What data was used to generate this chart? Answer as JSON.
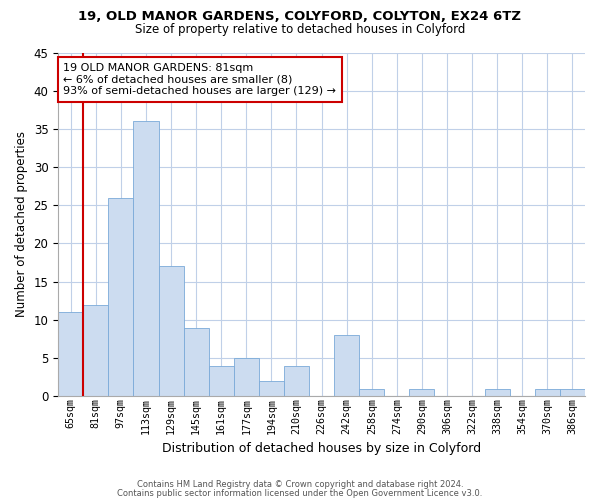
{
  "title": "19, OLD MANOR GARDENS, COLYFORD, COLYTON, EX24 6TZ",
  "subtitle": "Size of property relative to detached houses in Colyford",
  "xlabel": "Distribution of detached houses by size in Colyford",
  "ylabel": "Number of detached properties",
  "bin_labels": [
    "65sqm",
    "81sqm",
    "97sqm",
    "113sqm",
    "129sqm",
    "145sqm",
    "161sqm",
    "177sqm",
    "194sqm",
    "210sqm",
    "226sqm",
    "242sqm",
    "258sqm",
    "274sqm",
    "290sqm",
    "306sqm",
    "322sqm",
    "338sqm",
    "354sqm",
    "370sqm",
    "386sqm"
  ],
  "bar_heights": [
    11,
    12,
    26,
    36,
    17,
    9,
    4,
    5,
    2,
    4,
    0,
    8,
    1,
    0,
    1,
    0,
    0,
    1,
    0,
    1,
    1
  ],
  "highlight_bar_index": 1,
  "bar_face_color": "#ccdcf0",
  "bar_edge_color": "#7aaad8",
  "highlight_edge_color": "#cc0000",
  "ylim": [
    0,
    45
  ],
  "yticks": [
    0,
    5,
    10,
    15,
    20,
    25,
    30,
    35,
    40,
    45
  ],
  "annotation_text": "19 OLD MANOR GARDENS: 81sqm\n← 6% of detached houses are smaller (8)\n93% of semi-detached houses are larger (129) →",
  "annotation_box_color": "#ffffff",
  "annotation_box_edge": "#cc0000",
  "footer1": "Contains HM Land Registry data © Crown copyright and database right 2024.",
  "footer2": "Contains public sector information licensed under the Open Government Licence v3.0.",
  "bg_color": "#ffffff",
  "grid_color": "#c0d0e8"
}
